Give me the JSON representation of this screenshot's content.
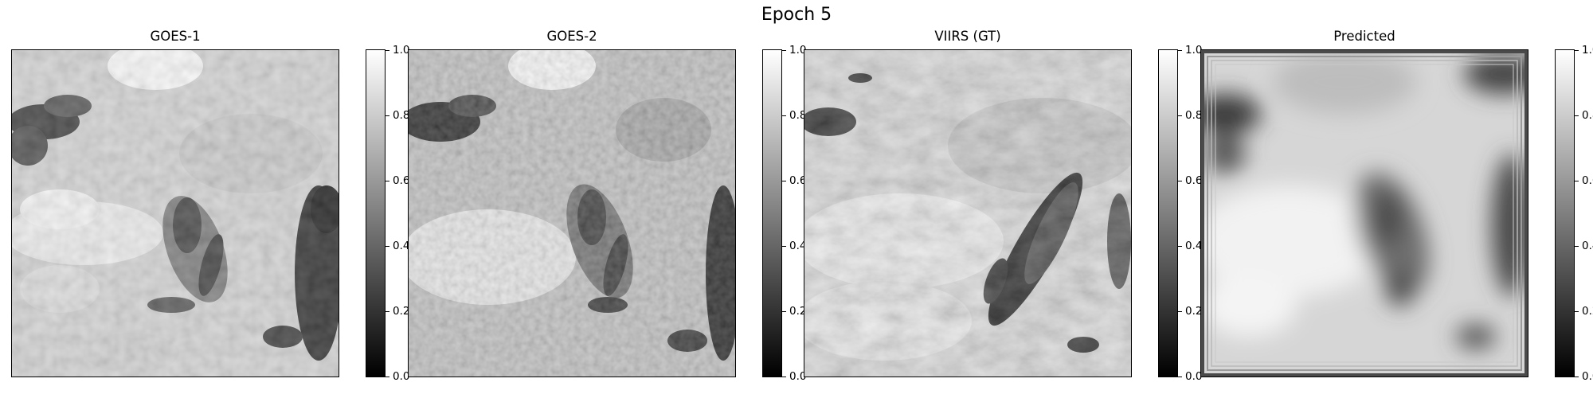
{
  "figure": {
    "title": "Epoch 5"
  },
  "panels": [
    {
      "title": "GOES-1"
    },
    {
      "title": "GOES-2"
    },
    {
      "title": "VIIRS (GT)"
    },
    {
      "title": "Predicted"
    }
  ],
  "colorbar": {
    "range": [
      0.0,
      1.0
    ],
    "ticks": [
      "0.0",
      "0.2",
      "0.4",
      "0.6",
      "0.8",
      "1.0"
    ],
    "colormap": "gray"
  }
}
